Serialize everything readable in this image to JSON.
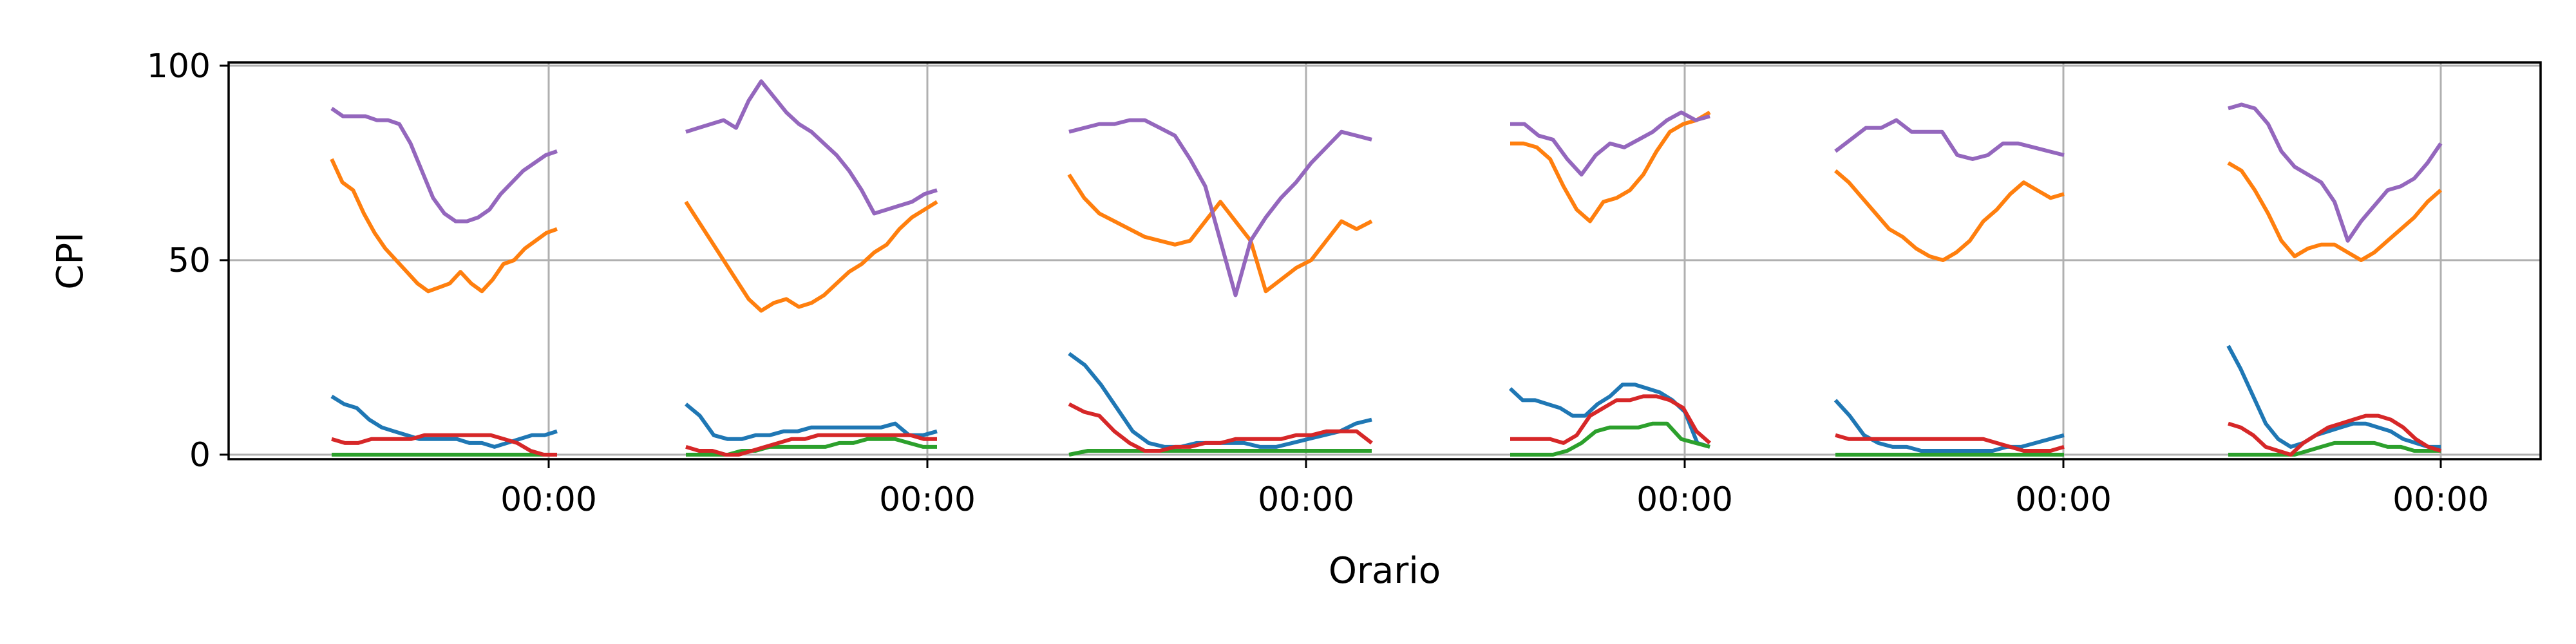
{
  "chart_data": {
    "type": "line",
    "xlabel": "Orario",
    "ylabel": "CPI",
    "ylim": [
      0,
      100
    ],
    "yticks": [
      0,
      50,
      100
    ],
    "x_tick_labels": [
      "00:00",
      "00:00",
      "00:00",
      "00:00",
      "00:00",
      "00:00"
    ],
    "grid": true,
    "colors": [
      "#1f77b4",
      "#ff7f0e",
      "#2ca02c",
      "#d62728",
      "#9467bd"
    ],
    "segments": [
      {
        "series": [
          {
            "values": [
              15,
              13,
              12,
              9,
              7,
              6,
              5,
              4,
              4,
              4,
              4,
              3,
              3,
              2,
              3,
              4,
              5,
              5,
              6
            ]
          },
          {
            "values": [
              76,
              70,
              68,
              62,
              57,
              53,
              50,
              47,
              44,
              42,
              43,
              44,
              47,
              44,
              42,
              45,
              49,
              50,
              53,
              55,
              57,
              58
            ]
          },
          {
            "values": [
              0,
              0,
              0,
              0,
              0,
              0,
              0,
              0,
              0,
              0,
              0,
              0,
              0,
              0,
              0,
              0,
              0,
              0
            ]
          },
          {
            "values": [
              4,
              3,
              3,
              4,
              4,
              4,
              4,
              5,
              5,
              5,
              5,
              5,
              5,
              4,
              3,
              1,
              0,
              0
            ]
          },
          {
            "values": [
              89,
              87,
              87,
              87,
              86,
              86,
              85,
              80,
              73,
              66,
              62,
              60,
              60,
              61,
              63,
              67,
              70,
              73,
              75,
              77,
              78
            ]
          }
        ]
      },
      {
        "series": [
          {
            "values": [
              13,
              10,
              5,
              4,
              4,
              5,
              5,
              6,
              6,
              7,
              7,
              7,
              7,
              7,
              7,
              8,
              5,
              5,
              6
            ]
          },
          {
            "values": [
              65,
              60,
              55,
              50,
              45,
              40,
              37,
              39,
              40,
              38,
              39,
              41,
              44,
              47,
              49,
              52,
              54,
              58,
              61,
              63,
              65
            ]
          },
          {
            "values": [
              0,
              0,
              0,
              0,
              1,
              1,
              2,
              2,
              2,
              2,
              2,
              3,
              3,
              4,
              4,
              4,
              3,
              2,
              2
            ]
          },
          {
            "values": [
              2,
              1,
              1,
              0,
              0,
              1,
              2,
              3,
              4,
              4,
              5,
              5,
              5,
              5,
              5,
              5,
              5,
              5,
              4,
              4
            ]
          },
          {
            "values": [
              83,
              84,
              85,
              86,
              84,
              91,
              96,
              92,
              88,
              85,
              83,
              80,
              77,
              73,
              68,
              62,
              63,
              64,
              65,
              67,
              68
            ]
          }
        ]
      },
      {
        "series": [
          {
            "values": [
              26,
              23,
              18,
              12,
              6,
              3,
              2,
              2,
              3,
              3,
              3,
              3,
              2,
              2,
              3,
              4,
              5,
              6,
              8,
              9
            ]
          },
          {
            "values": [
              72,
              66,
              62,
              60,
              58,
              56,
              55,
              54,
              55,
              60,
              65,
              60,
              55,
              42,
              45,
              48,
              50,
              55,
              60,
              58,
              60
            ]
          },
          {
            "values": [
              0,
              1,
              1,
              1,
              1,
              1,
              1,
              1,
              1,
              1,
              1,
              1,
              1,
              1,
              1,
              1,
              1
            ]
          },
          {
            "values": [
              13,
              11,
              10,
              6,
              3,
              1,
              1,
              2,
              2,
              3,
              3,
              4,
              4,
              4,
              4,
              5,
              5,
              6,
              6,
              6,
              3
            ]
          },
          {
            "values": [
              83,
              84,
              85,
              85,
              86,
              86,
              84,
              82,
              76,
              69,
              55,
              41,
              55,
              61,
              66,
              70,
              75,
              79,
              83,
              82,
              81
            ]
          }
        ]
      },
      {
        "series": [
          {
            "values": [
              17,
              14,
              14,
              13,
              12,
              10,
              10,
              13,
              15,
              18,
              18,
              17,
              16,
              14,
              11,
              3,
              2
            ]
          },
          {
            "values": [
              80,
              80,
              79,
              76,
              69,
              63,
              60,
              65,
              66,
              68,
              72,
              78,
              83,
              85,
              86,
              88
            ]
          },
          {
            "values": [
              0,
              0,
              0,
              0,
              1,
              3,
              6,
              7,
              7,
              7,
              8,
              8,
              4,
              3,
              2
            ]
          },
          {
            "values": [
              4,
              4,
              4,
              4,
              3,
              5,
              10,
              12,
              14,
              14,
              15,
              15,
              14,
              12,
              6,
              3
            ]
          },
          {
            "values": [
              85,
              85,
              82,
              81,
              76,
              72,
              77,
              80,
              79,
              81,
              83,
              86,
              88,
              86,
              87
            ]
          }
        ]
      },
      {
        "series": [
          {
            "values": [
              14,
              10,
              5,
              3,
              2,
              2,
              1,
              1,
              1,
              1,
              1,
              1,
              2,
              2,
              3,
              4,
              5
            ]
          },
          {
            "values": [
              73,
              70,
              66,
              62,
              58,
              56,
              53,
              51,
              50,
              52,
              55,
              60,
              63,
              67,
              70,
              68,
              66,
              67
            ]
          },
          {
            "values": [
              0,
              0,
              0,
              0,
              0,
              0,
              0,
              0,
              0,
              0,
              0,
              0,
              0,
              0,
              0,
              0,
              0
            ]
          },
          {
            "values": [
              5,
              4,
              4,
              4,
              4,
              4,
              4,
              4,
              4,
              4,
              4,
              4,
              3,
              2,
              1,
              1,
              1,
              2
            ]
          },
          {
            "values": [
              78,
              81,
              84,
              84,
              86,
              83,
              83,
              83,
              77,
              76,
              77,
              80,
              80,
              79,
              78,
              77
            ]
          }
        ]
      },
      {
        "series": [
          {
            "values": [
              28,
              22,
              15,
              8,
              4,
              2,
              3,
              5,
              6,
              7,
              8,
              8,
              7,
              6,
              4,
              3,
              2,
              2
            ]
          },
          {
            "values": [
              75,
              73,
              68,
              62,
              55,
              51,
              53,
              54,
              54,
              52,
              50,
              52,
              55,
              58,
              61,
              65,
              68
            ]
          },
          {
            "values": [
              0,
              0,
              0,
              0,
              0,
              0,
              1,
              2,
              3,
              3,
              3,
              3,
              2,
              2,
              1,
              1,
              1
            ]
          },
          {
            "values": [
              8,
              7,
              5,
              2,
              1,
              0,
              3,
              5,
              7,
              8,
              9,
              10,
              10,
              9,
              7,
              4,
              2,
              1
            ]
          },
          {
            "values": [
              89,
              90,
              89,
              85,
              78,
              74,
              72,
              70,
              65,
              55,
              60,
              64,
              68,
              69,
              71,
              75,
              80
            ]
          }
        ]
      }
    ]
  }
}
